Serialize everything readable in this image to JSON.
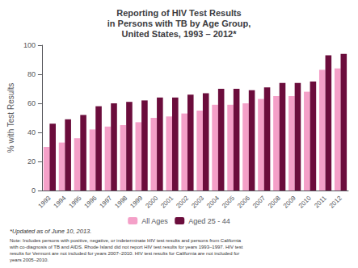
{
  "chart_data": {
    "type": "bar",
    "title": "Reporting of HIV Test Results\nin Persons with TB by Age Group,\nUnited States, 1993 – 2012*",
    "y_label": "% with Test Results",
    "categories": [
      "1993",
      "1994",
      "1995",
      "1996",
      "1997",
      "1998",
      "1999",
      "2000",
      "2001",
      "2002",
      "2003",
      "2004",
      "2005",
      "2006",
      "2007",
      "2008",
      "2009",
      "2010",
      "2011",
      "2012"
    ],
    "series": [
      {
        "name": "All Ages",
        "color": "#f4a0c8",
        "values": [
          30,
          33,
          36,
          42,
          44,
          45,
          47,
          50,
          51,
          53,
          55,
          59,
          59,
          60,
          63,
          65,
          65,
          68,
          83,
          84
        ]
      },
      {
        "name": "Aged 25 - 44",
        "color": "#6b0d3c",
        "values": [
          46,
          49,
          52,
          58,
          60,
          61,
          62,
          64,
          64,
          66,
          67,
          70,
          70,
          69,
          71,
          74,
          74,
          75,
          93,
          94
        ]
      }
    ],
    "ylim": [
      0,
      100
    ],
    "yticks": [
      0,
      20,
      40,
      60,
      80,
      100
    ],
    "grid": false,
    "legend": "bottom",
    "annotations": [
      "*Updated as of June 10, 2013.",
      "Note: Includes persons with positive, negative, or indeterminate HIV test results and persons from California\nwith co-diagnosis of TB and AIDS. Rhode Island did not report HIV test results for years 1993–1997. HIV test\nresults for Vermont are not included for years 2007–2010. HIV test results for California are not included for\nyears 2005–2010."
    ]
  }
}
